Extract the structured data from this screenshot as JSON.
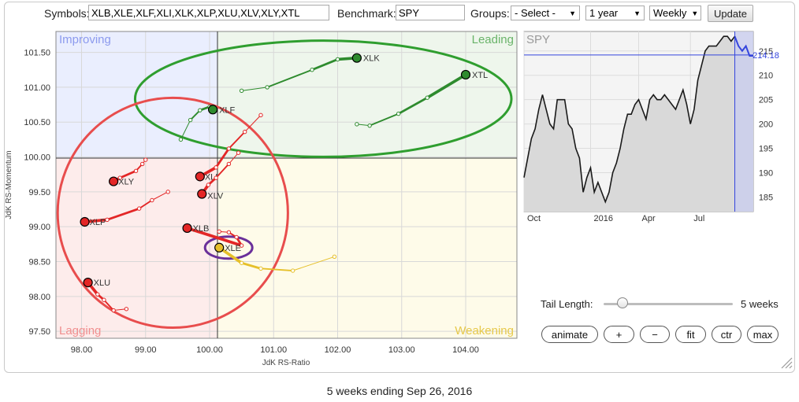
{
  "toolbar": {
    "symbols_label": "Symbols:",
    "symbols_value": "XLB,XLE,XLF,XLI,XLK,XLP,XLU,XLV,XLY,XTL",
    "benchmark_label": "Benchmark:",
    "benchmark_value": "SPY",
    "groups_label": "Groups:",
    "groups_selected": "- Select -",
    "period_selected": "1 year",
    "frequency_selected": "Weekly",
    "update_label": "Update"
  },
  "controls": {
    "tail_length_label": "Tail Length:",
    "tail_length_value": "5 weeks",
    "tail_length_level": 5,
    "animate_label": "animate",
    "plus_label": "+",
    "minus_label": "−",
    "fit_label": "fit",
    "ctr_label": "ctr",
    "max_label": "max"
  },
  "caption": "5 weeks ending Sep 26, 2016",
  "colors": {
    "leading": "#2e8b2e",
    "weakening": "#e6c02a",
    "lagging": "#e32626",
    "improving": "#5b6ee6",
    "highlight_green": "#2f9e2f",
    "highlight_red": "#e84d4d",
    "highlight_purple": "#6a2f9a",
    "benchmark_line": "#1a1a1a",
    "benchmark_recent": "#3344dd"
  },
  "chart_data": [
    {
      "type": "scatter",
      "subtype": "relative-rotation-graph",
      "xlabel": "JdK RS-Ratio",
      "ylabel": "JdK RS-Momentum",
      "xlim": [
        97.6,
        104.8
      ],
      "ylim": [
        97.4,
        101.8
      ],
      "x_ticks": [
        "98.00",
        "99.00",
        "100.00",
        "101.00",
        "102.00",
        "103.00",
        "104.00"
      ],
      "y_ticks": [
        "97.50",
        "98.00",
        "98.50",
        "99.00",
        "99.50",
        "100.00",
        "100.50",
        "101.00",
        "101.50"
      ],
      "quadrants": {
        "top_left": "Improving",
        "top_right": "Leading",
        "bottom_left": "Lagging",
        "bottom_right": "Weakening"
      },
      "series": [
        {
          "name": "XLK",
          "quadrant": "leading",
          "points": [
            [
              100.5,
              100.95
            ],
            [
              100.9,
              101.0
            ],
            [
              101.6,
              101.25
            ],
            [
              102.0,
              101.4
            ],
            [
              102.3,
              101.42
            ]
          ]
        },
        {
          "name": "XTL",
          "quadrant": "leading",
          "points": [
            [
              102.3,
              100.47
            ],
            [
              102.5,
              100.45
            ],
            [
              102.95,
              100.62
            ],
            [
              103.4,
              100.85
            ],
            [
              104.0,
              101.18
            ]
          ]
        },
        {
          "name": "XLF",
          "quadrant": "leading",
          "points": [
            [
              99.55,
              100.25
            ],
            [
              99.7,
              100.53
            ],
            [
              99.85,
              100.67
            ],
            [
              100.0,
              100.72
            ],
            [
              100.05,
              100.68
            ]
          ]
        },
        {
          "name": "XLY",
          "quadrant": "lagging",
          "points": [
            [
              99.0,
              99.96
            ],
            [
              98.95,
              99.9
            ],
            [
              98.85,
              99.8
            ],
            [
              98.6,
              99.7
            ],
            [
              98.5,
              99.65
            ]
          ]
        },
        {
          "name": "XLP",
          "quadrant": "lagging",
          "points": [
            [
              99.35,
              99.5
            ],
            [
              99.1,
              99.38
            ],
            [
              98.9,
              99.26
            ],
            [
              98.4,
              99.1
            ],
            [
              98.05,
              99.07
            ]
          ]
        },
        {
          "name": "XLU",
          "quadrant": "lagging",
          "points": [
            [
              98.7,
              97.82
            ],
            [
              98.5,
              97.8
            ],
            [
              98.35,
              97.95
            ],
            [
              98.25,
              98.03
            ],
            [
              98.1,
              98.2
            ]
          ]
        },
        {
          "name": "XLI",
          "quadrant": "lagging",
          "points": [
            [
              100.8,
              100.6
            ],
            [
              100.55,
              100.36
            ],
            [
              100.3,
              100.12
            ],
            [
              100.1,
              99.85
            ],
            [
              99.85,
              99.72
            ]
          ]
        },
        {
          "name": "XLV",
          "quadrant": "lagging",
          "points": [
            [
              100.45,
              100.06
            ],
            [
              100.3,
              99.9
            ],
            [
              100.1,
              99.7
            ],
            [
              99.98,
              99.6
            ],
            [
              99.88,
              99.47
            ]
          ]
        },
        {
          "name": "XLB",
          "quadrant": "lagging",
          "points": [
            [
              100.15,
              98.93
            ],
            [
              100.3,
              98.92
            ],
            [
              100.42,
              98.85
            ],
            [
              100.5,
              98.73
            ],
            [
              99.65,
              98.98
            ]
          ]
        },
        {
          "name": "XLE",
          "quadrant": "weakening",
          "points": [
            [
              101.95,
              98.57
            ],
            [
              101.3,
              98.37
            ],
            [
              100.8,
              98.4
            ],
            [
              100.5,
              98.48
            ],
            [
              100.15,
              98.7
            ]
          ]
        }
      ],
      "annotations": [
        {
          "shape": "ellipse",
          "color": "green",
          "encircles": [
            "XLK",
            "XTL",
            "XLF"
          ]
        },
        {
          "shape": "circle",
          "color": "red",
          "encircles": [
            "XLY",
            "XLP",
            "XLU",
            "XLI",
            "XLV",
            "XLB"
          ]
        },
        {
          "shape": "ellipse",
          "color": "purple",
          "encircles": [
            "XLE"
          ]
        }
      ]
    },
    {
      "type": "line",
      "title": "SPY",
      "x_ticks": [
        "Oct",
        "2016",
        "Apr",
        "Jul"
      ],
      "y_ticks": [
        "185",
        "190",
        "195",
        "200",
        "205",
        "210",
        "215"
      ],
      "ylim": [
        182,
        219
      ],
      "last_value_label": "214.18",
      "last_value": 214.18,
      "values": [
        189,
        193,
        197,
        199,
        203,
        206,
        203,
        200,
        199,
        205,
        205,
        205,
        200,
        199,
        195,
        193,
        186,
        189,
        191,
        186,
        188,
        186,
        184,
        186,
        190,
        192,
        195,
        199,
        202,
        202,
        204,
        205,
        203,
        201,
        205,
        206,
        205,
        205,
        206,
        205,
        204,
        203,
        205,
        207,
        204,
        200,
        203,
        209,
        212,
        215,
        216,
        216,
        216,
        217,
        218,
        218,
        217,
        218,
        216,
        215,
        216,
        214,
        214
      ],
      "highlight_start_index": 57
    }
  ]
}
